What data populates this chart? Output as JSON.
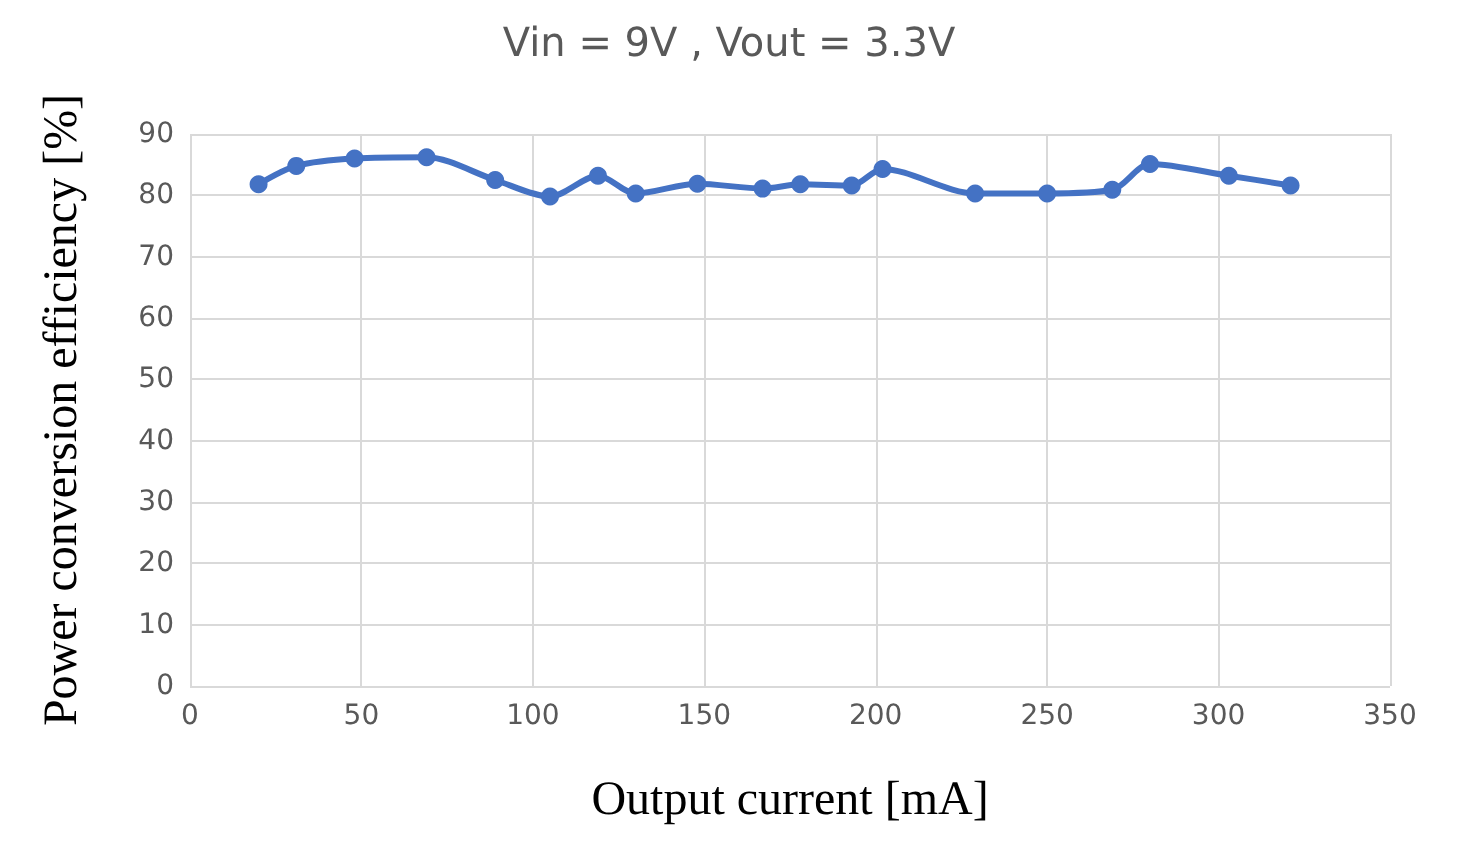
{
  "chart_data": {
    "type": "line",
    "title": "Vin = 9V , Vout = 3.3V",
    "xlabel": "Output current [mA]",
    "ylabel": "Power conversion efficiency [%]",
    "x": [
      20,
      31,
      48,
      69,
      89,
      105,
      119,
      130,
      148,
      167,
      178,
      193,
      202,
      229,
      250,
      269,
      280,
      303,
      321
    ],
    "series": [
      {
        "color": "#4472c4",
        "values": [
          81.8,
          84.8,
          86.0,
          86.2,
          82.5,
          79.8,
          83.2,
          80.3,
          81.9,
          81.1,
          81.8,
          81.6,
          84.3,
          80.3,
          80.3,
          80.9,
          85.1,
          83.2,
          81.6
        ]
      }
    ],
    "xlim": [
      0,
      350
    ],
    "xticks": [
      0,
      50,
      100,
      150,
      200,
      250,
      300,
      350
    ],
    "ylim": [
      0,
      90
    ],
    "yticks": [
      0,
      10,
      20,
      30,
      40,
      50,
      60,
      70,
      80,
      90
    ],
    "grid": true,
    "marker": "circle",
    "line_style": "solid"
  }
}
